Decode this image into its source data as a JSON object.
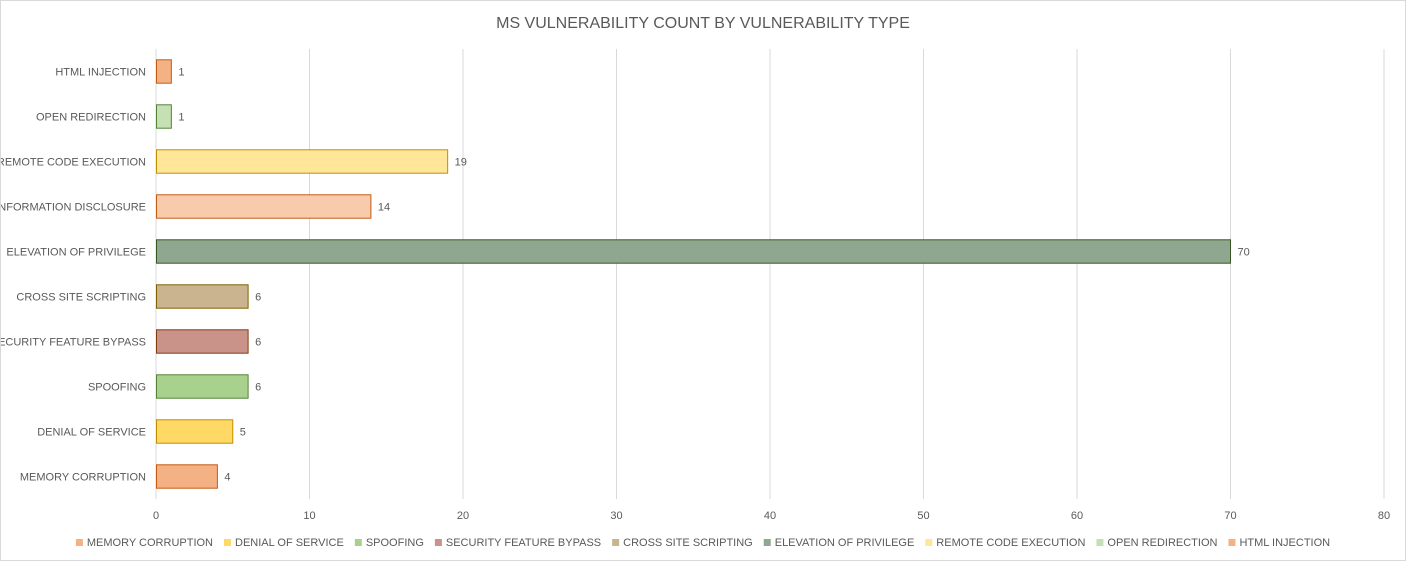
{
  "chart_data": {
    "type": "bar",
    "orientation": "horizontal",
    "title": "MS VULNERABILITY COUNT BY VULNERABILITY TYPE",
    "xlabel": "",
    "ylabel": "",
    "xlim": [
      0,
      80
    ],
    "x_ticks": [
      0,
      10,
      20,
      30,
      40,
      50,
      60,
      70,
      80
    ],
    "grid": true,
    "legend_position": "bottom",
    "categories": [
      "MEMORY CORRUPTION",
      "DENIAL OF SERVICE",
      "SPOOFING",
      "SECURITY FEATURE BYPASS",
      "CROSS SITE SCRIPTING",
      "ELEVATION OF PRIVILEGE",
      "INFORMATION DISCLOSURE",
      "REMOTE CODE EXECUTION",
      "OPEN REDIRECTION",
      "HTML INJECTION"
    ],
    "values": [
      4,
      5,
      6,
      6,
      6,
      70,
      14,
      19,
      1,
      1
    ],
    "colors": [
      "#F4B183",
      "#FFD966",
      "#A9D18E",
      "#C9938A",
      "#C9B48F",
      "#8FA68F",
      "#F8CBAD",
      "#FFE699",
      "#C5E0B4",
      "#F4B183"
    ],
    "edge_colors": [
      "#C55A11",
      "#BF9000",
      "#548235",
      "#843C0C",
      "#7F6000",
      "#375623",
      "#C55A11",
      "#BF9000",
      "#548235",
      "#C55A11"
    ],
    "legend": [
      "MEMORY CORRUPTION",
      "DENIAL OF SERVICE",
      "SPOOFING",
      "SECURITY FEATURE BYPASS",
      "CROSS SITE SCRIPTING",
      "ELEVATION OF PRIVILEGE",
      "REMOTE CODE EXECUTION",
      "OPEN REDIRECTION",
      "HTML INJECTION"
    ],
    "legend_colors": [
      "#F4B183",
      "#FFD966",
      "#A9D18E",
      "#C9938A",
      "#C9B48F",
      "#8FA68F",
      "#FFE699",
      "#C5E0B4",
      "#F4B183"
    ]
  }
}
